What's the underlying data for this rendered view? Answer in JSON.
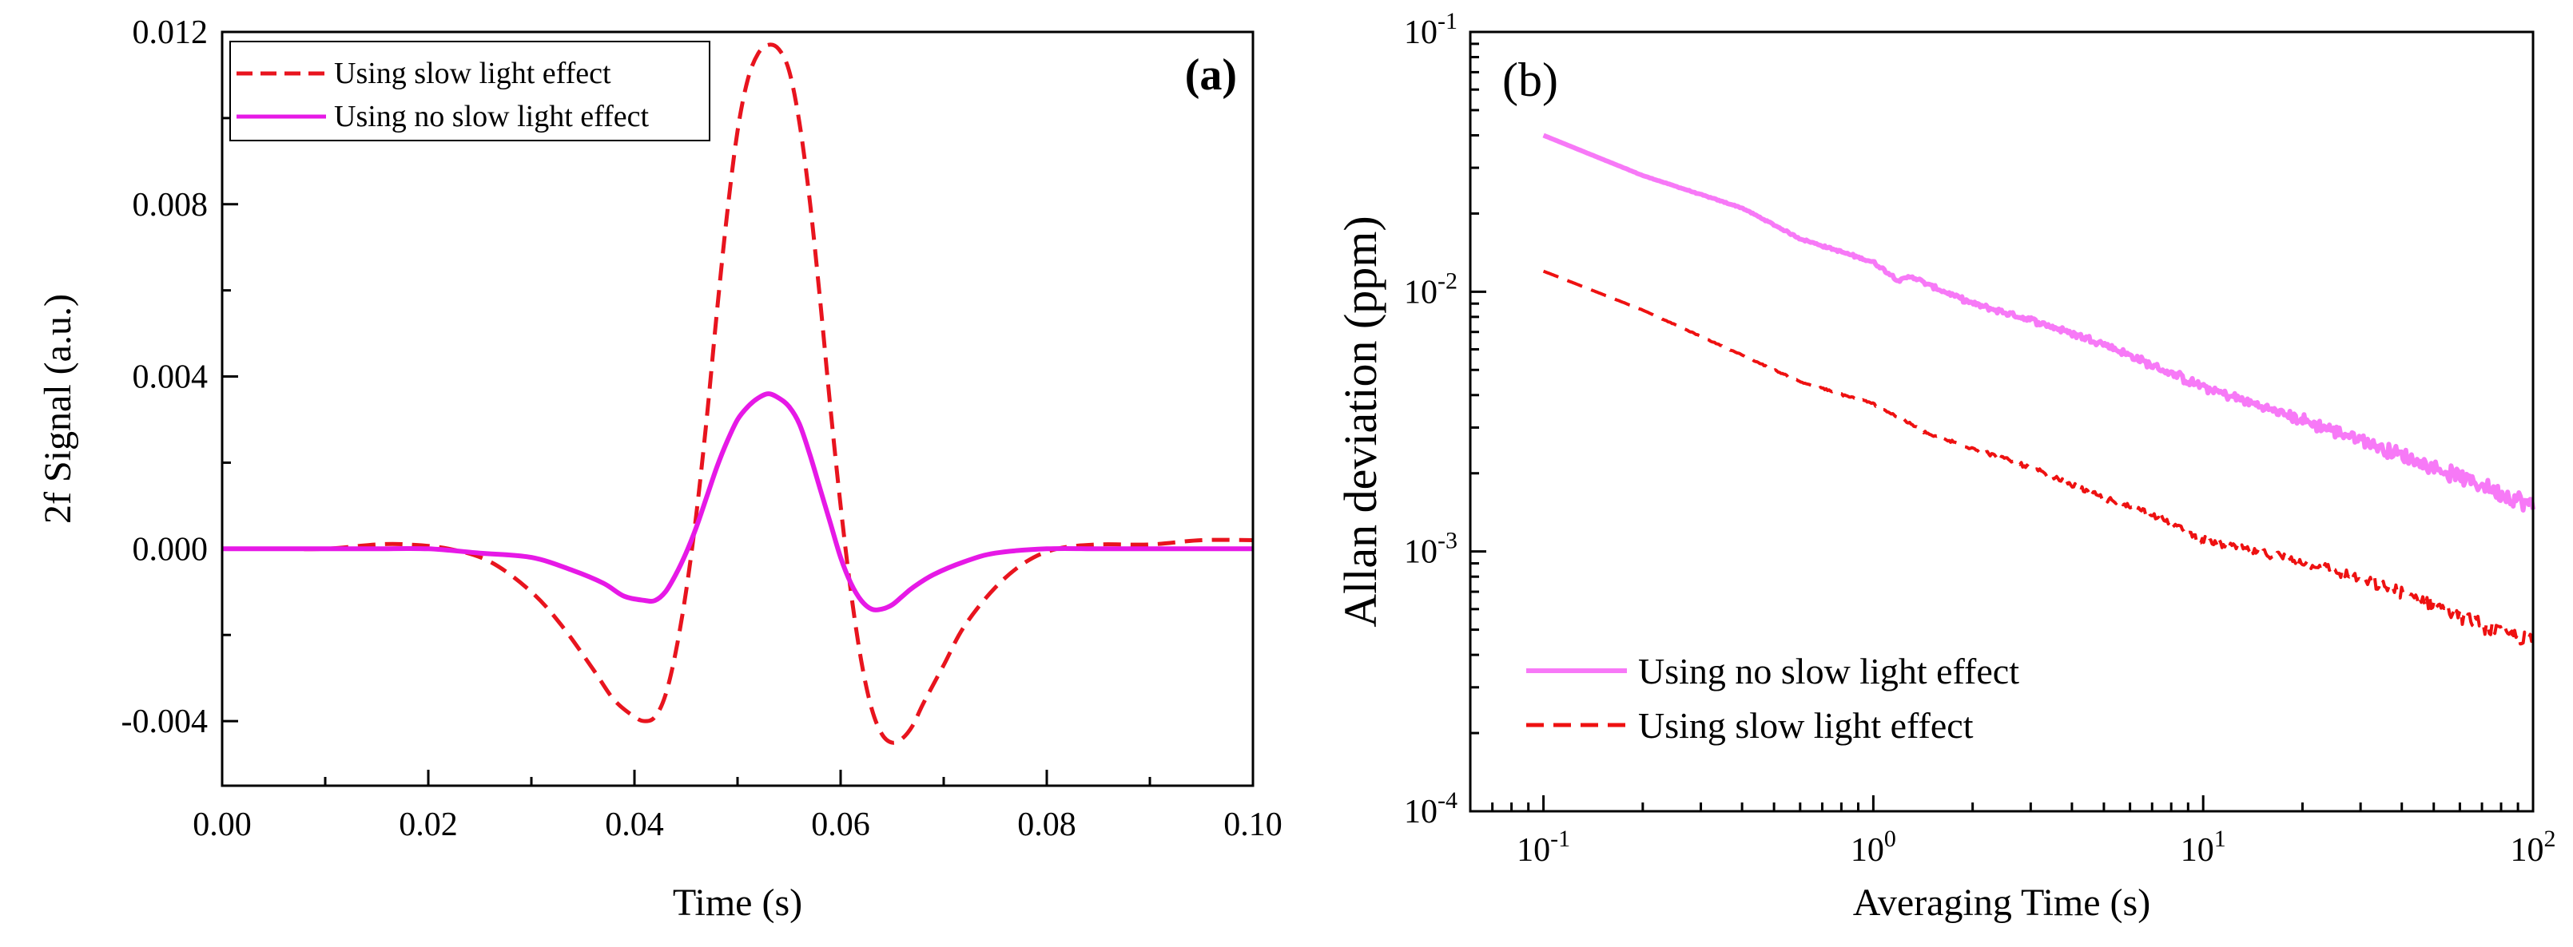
{
  "chart_data": [
    {
      "type": "line",
      "panel_label": "(a)",
      "xlabel": "Time (s)",
      "ylabel": "2f Signal (a.u.)",
      "xlim": [
        0.0,
        0.1
      ],
      "ylim": [
        -0.0055,
        0.012
      ],
      "xticks": [
        0.0,
        0.02,
        0.04,
        0.06,
        0.08,
        0.1
      ],
      "xtick_labels": [
        "0.00",
        "0.02",
        "0.04",
        "0.06",
        "0.08",
        "0.10"
      ],
      "yticks": [
        -0.004,
        0.0,
        0.004,
        0.008,
        0.012
      ],
      "ytick_labels": [
        "-0.004",
        "0.000",
        "0.004",
        "0.008",
        "0.012"
      ],
      "legend_position": "top-left",
      "series": [
        {
          "name": "Using slow light effect",
          "color": "#e8141e",
          "style": "dashed",
          "x": [
            0.0,
            0.005,
            0.01,
            0.015,
            0.018,
            0.022,
            0.026,
            0.03,
            0.033,
            0.036,
            0.038,
            0.04,
            0.041,
            0.042,
            0.043,
            0.044,
            0.045,
            0.046,
            0.047,
            0.048,
            0.049,
            0.05,
            0.051,
            0.052,
            0.053,
            0.054,
            0.055,
            0.056,
            0.057,
            0.058,
            0.059,
            0.06,
            0.061,
            0.062,
            0.063,
            0.064,
            0.065,
            0.066,
            0.067,
            0.068,
            0.07,
            0.072,
            0.075,
            0.078,
            0.081,
            0.085,
            0.09,
            0.095,
            0.1
          ],
          "y": [
            0.0,
            0.0,
            0.0,
            0.0001,
            0.0001,
            0.0,
            -0.0003,
            -0.001,
            -0.0018,
            -0.0028,
            -0.0035,
            -0.0039,
            -0.004,
            -0.0039,
            -0.0034,
            -0.0024,
            -0.001,
            0.0008,
            0.003,
            0.0055,
            0.0078,
            0.0097,
            0.0109,
            0.0115,
            0.0117,
            0.0116,
            0.0111,
            0.0099,
            0.0081,
            0.0058,
            0.0033,
            0.001,
            -0.001,
            -0.0026,
            -0.0037,
            -0.0043,
            -0.0045,
            -0.0044,
            -0.0041,
            -0.0036,
            -0.0027,
            -0.0018,
            -0.0009,
            -0.0003,
            0.0,
            0.0001,
            0.0001,
            0.0002,
            0.0002
          ]
        },
        {
          "name": "Using no slow light effect",
          "color": "#e619e6",
          "style": "solid",
          "x": [
            0.0,
            0.005,
            0.01,
            0.015,
            0.02,
            0.025,
            0.03,
            0.034,
            0.037,
            0.039,
            0.041,
            0.042,
            0.043,
            0.044,
            0.045,
            0.046,
            0.047,
            0.048,
            0.049,
            0.05,
            0.051,
            0.052,
            0.053,
            0.054,
            0.055,
            0.056,
            0.057,
            0.058,
            0.059,
            0.06,
            0.061,
            0.062,
            0.063,
            0.064,
            0.065,
            0.066,
            0.067,
            0.069,
            0.072,
            0.075,
            0.08,
            0.085,
            0.09,
            0.095,
            0.1
          ],
          "y": [
            0.0,
            0.0,
            0.0,
            0.0,
            0.0,
            -0.0001,
            -0.0002,
            -0.0005,
            -0.0008,
            -0.0011,
            -0.0012,
            -0.0012,
            -0.001,
            -0.0006,
            -0.0001,
            0.0005,
            0.0012,
            0.0019,
            0.0025,
            0.003,
            0.0033,
            0.0035,
            0.0036,
            0.0035,
            0.0033,
            0.0029,
            0.0022,
            0.0014,
            0.0006,
            -0.0002,
            -0.0008,
            -0.0012,
            -0.0014,
            -0.0014,
            -0.0013,
            -0.0011,
            -0.0009,
            -0.0006,
            -0.0003,
            -0.0001,
            0.0,
            0.0,
            0.0,
            0.0,
            0.0
          ]
        }
      ]
    },
    {
      "type": "line",
      "panel_label": "(b)",
      "xlabel": "Averaging Time (s)",
      "ylabel": "Allan deviation (ppm)",
      "xscale": "log",
      "yscale": "log",
      "xlim": [
        0.06,
        100
      ],
      "ylim": [
        0.0001,
        0.1
      ],
      "xticks": [
        0.1,
        1,
        10,
        100
      ],
      "xtick_labels": [
        {
          "base": "10",
          "exp": "-1"
        },
        {
          "base": "10",
          "exp": "0"
        },
        {
          "base": "10",
          "exp": "1"
        },
        {
          "base": "10",
          "exp": "2"
        }
      ],
      "yticks": [
        0.0001,
        0.001,
        0.01,
        0.1
      ],
      "ytick_labels": [
        {
          "base": "10",
          "exp": "-4"
        },
        {
          "base": "10",
          "exp": "-3"
        },
        {
          "base": "10",
          "exp": "-2"
        },
        {
          "base": "10",
          "exp": "-1"
        }
      ],
      "legend_position": "bottom-left",
      "series": [
        {
          "name": "Using no slow light effect",
          "color": "#f779f7",
          "style": "solid",
          "x": [
            0.1,
            0.2,
            0.4,
            0.6,
            1.0,
            1.2,
            1.3,
            1.5,
            2.0,
            3.0,
            5.0,
            7.0,
            10.0,
            20.0,
            30.0,
            50.0,
            70.0,
            100.0
          ],
          "y": [
            0.04,
            0.028,
            0.021,
            0.016,
            0.013,
            0.011,
            0.0115,
            0.0105,
            0.009,
            0.0078,
            0.0063,
            0.0052,
            0.0043,
            0.0032,
            0.0027,
            0.0021,
            0.0018,
            0.0015
          ],
          "noise": 0.12
        },
        {
          "name": "Using slow light effect",
          "color": "#ee1111",
          "style": "dashed",
          "x": [
            0.1,
            0.2,
            0.4,
            0.6,
            1.0,
            1.5,
            2.0,
            3.0,
            5.0,
            7.0,
            10.0,
            20.0,
            30.0,
            50.0,
            70.0,
            100.0
          ],
          "y": [
            0.012,
            0.0085,
            0.0057,
            0.0045,
            0.0037,
            0.0028,
            0.0025,
            0.0021,
            0.0016,
            0.0014,
            0.0011,
            0.00092,
            0.00078,
            0.00063,
            0.00052,
            0.00045
          ],
          "noise": 0.1
        }
      ]
    }
  ]
}
